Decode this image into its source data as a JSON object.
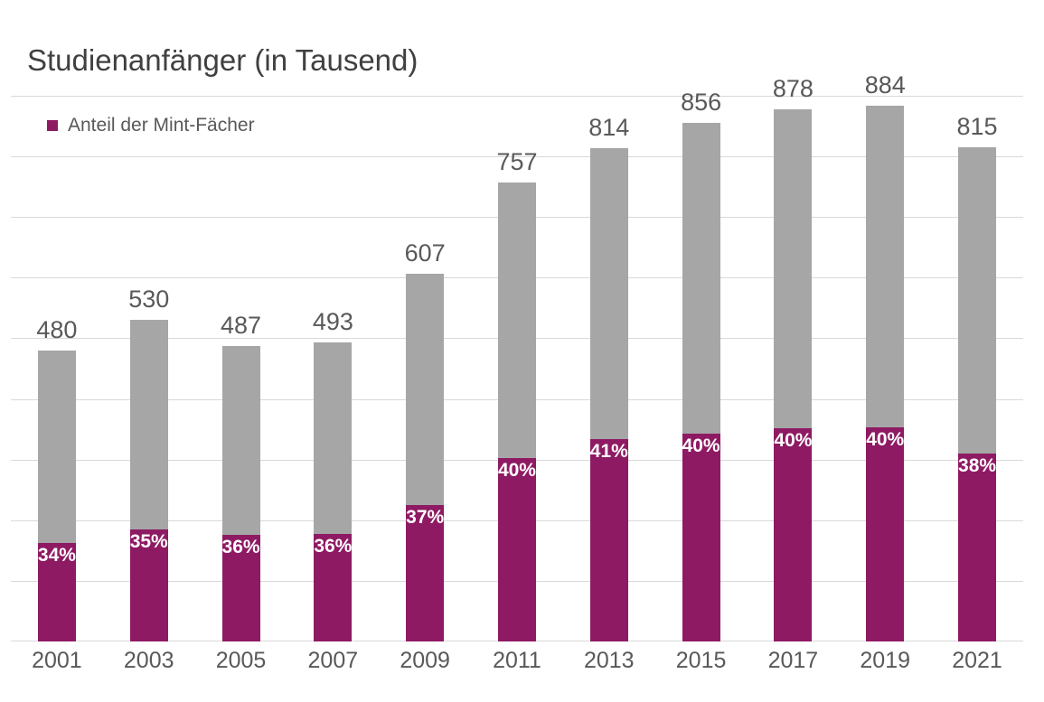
{
  "title": "Studienanfänger (in Tausend)",
  "legend": {
    "label": "Anteil der Mint-Fächer"
  },
  "colors": {
    "mint": "#8E1A63",
    "rest": "#A6A6A6",
    "gridline": "#D9D9D9",
    "title_text": "#404040",
    "label_text": "#595959",
    "percent_text": "#FFFFFF"
  },
  "chart_data": {
    "type": "bar",
    "stacked": true,
    "title": "Studienanfänger (in Tausend)",
    "legend_entries": [
      "Anteil der Mint-Fächer"
    ],
    "legend_position": "top-left",
    "categories": [
      "2001",
      "2003",
      "2005",
      "2007",
      "2009",
      "2011",
      "2013",
      "2015",
      "2017",
      "2019",
      "2021"
    ],
    "totals": [
      480,
      530,
      487,
      493,
      607,
      757,
      814,
      856,
      878,
      884,
      815
    ],
    "total_labels": [
      "480",
      "530",
      "487",
      "493",
      "607",
      "757",
      "814",
      "856",
      "878",
      "884",
      "815"
    ],
    "series": [
      {
        "name": "Anteil der Mint-Fächer",
        "color": "#8E1A63",
        "percent_of_total": [
          34,
          35,
          36,
          36,
          37,
          40,
          41,
          40,
          40,
          40,
          38
        ],
        "data_labels": [
          "34%",
          "35%",
          "36%",
          "36%",
          "37%",
          "40%",
          "41%",
          "40%",
          "40%",
          "40%",
          "38%"
        ],
        "label_position": "inside-end"
      },
      {
        "name": "",
        "color": "#A6A6A6",
        "description": "unlabeled remainder up to the bar total"
      }
    ],
    "xlabel": "",
    "ylabel": "",
    "ylim": [
      0,
      900
    ],
    "gridline_step": 100,
    "gridlines_visible": true,
    "y_axis_labels_visible": false
  }
}
